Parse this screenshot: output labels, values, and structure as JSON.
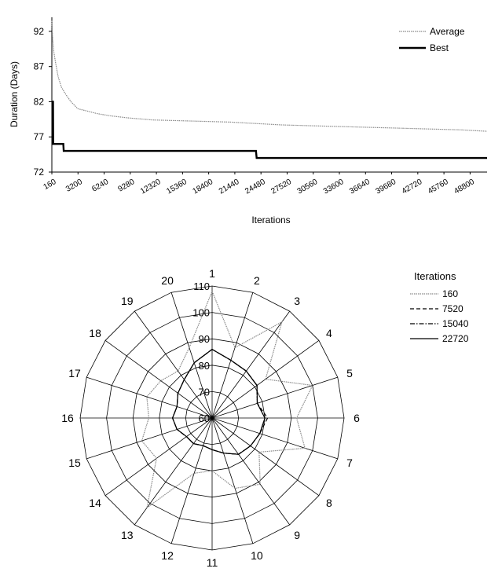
{
  "chart_data": [
    {
      "type": "line",
      "ylabel": "Duration (Days)",
      "xlabel": "Iterations",
      "ylim": [
        72,
        94
      ],
      "yticks": [
        72,
        77,
        82,
        87,
        92
      ],
      "xlim": [
        160,
        51000
      ],
      "x_tick_labels": [
        "160",
        "3200",
        "6240",
        "9280",
        "12320",
        "15360",
        "18400",
        "21440",
        "24480",
        "27520",
        "30560",
        "33600",
        "36640",
        "39680",
        "42720",
        "45760",
        "48800"
      ],
      "legend_position": "top-right",
      "series": [
        {
          "name": "Average",
          "style": "dotted-grey",
          "x": [
            160,
            250,
            400,
            600,
            900,
            1300,
            1800,
            2400,
            3200,
            4200,
            5500,
            7000,
            9000,
            12000,
            15000,
            18000,
            21000,
            24000,
            27000,
            30000,
            33000,
            36000,
            39000,
            42000,
            45000,
            48000,
            51000
          ],
          "y": [
            93.5,
            91,
            89,
            87.5,
            85.5,
            84,
            83,
            82,
            81,
            80.7,
            80.3,
            80,
            79.7,
            79.4,
            79.3,
            79.2,
            79.1,
            78.9,
            78.7,
            78.6,
            78.5,
            78.4,
            78.3,
            78.2,
            78.1,
            78.0,
            77.8
          ]
        },
        {
          "name": "Best",
          "style": "solid-black",
          "x": [
            160,
            300,
            320,
            800,
            850,
            1500,
            1550,
            24000,
            24080,
            51000
          ],
          "y": [
            82,
            82,
            76,
            76,
            76,
            76,
            75,
            75,
            74,
            74
          ]
        }
      ]
    },
    {
      "type": "radar",
      "legend_title": "Iterations",
      "legend_position": "right",
      "axes": [
        "1",
        "2",
        "3",
        "4",
        "5",
        "6",
        "7",
        "8",
        "9",
        "10",
        "11",
        "12",
        "13",
        "14",
        "15",
        "16",
        "17",
        "18",
        "19",
        "20"
      ],
      "rlim": [
        60,
        110
      ],
      "rticks": [
        60,
        70,
        80,
        90,
        100,
        110
      ],
      "series": [
        {
          "name": "160",
          "style": "dotted-grey",
          "values": [
            108,
            88,
            105,
            85,
            100,
            92,
            97,
            82,
            91,
            88,
            80,
            82,
            102,
            86,
            88,
            84,
            86,
            84,
            82,
            88
          ]
        },
        {
          "name": "7520",
          "style": "dashed",
          "values": [
            86,
            83,
            82,
            81,
            78,
            81,
            79,
            78,
            77,
            74,
            72,
            71,
            72,
            72,
            74,
            75,
            74,
            76,
            78,
            82
          ]
        },
        {
          "name": "15040",
          "style": "dash-dot",
          "values": [
            86,
            83,
            82,
            81,
            78,
            80,
            79,
            78,
            77,
            74,
            72,
            71,
            72,
            72,
            74,
            75,
            74,
            76,
            78,
            82
          ]
        },
        {
          "name": "22720",
          "style": "solid",
          "values": [
            86,
            83,
            82,
            81,
            78,
            80,
            79,
            78,
            77,
            74,
            72,
            71,
            72,
            72,
            74,
            75,
            74,
            76,
            78,
            82
          ]
        }
      ]
    }
  ]
}
